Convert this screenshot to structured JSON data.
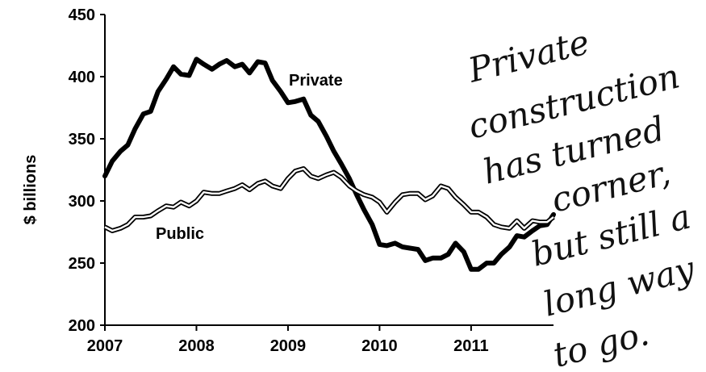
{
  "chart_data": {
    "type": "line",
    "title": "",
    "xlabel": "",
    "ylabel": "$ billions",
    "xlim": [
      2007.0,
      2011.9
    ],
    "ylim": [
      200,
      450
    ],
    "x_ticks": [
      "2007",
      "2008",
      "2009",
      "2010",
      "2011"
    ],
    "y_ticks": [
      "200",
      "250",
      "300",
      "350",
      "400",
      "450"
    ],
    "grid": false,
    "legend": "none",
    "series": [
      {
        "name": "Private",
        "color": "#000000",
        "style": "thick",
        "points": [
          [
            2007.0,
            320
          ],
          [
            2007.08,
            332
          ],
          [
            2007.17,
            340
          ],
          [
            2007.25,
            345
          ],
          [
            2007.33,
            358
          ],
          [
            2007.42,
            370
          ],
          [
            2007.5,
            372
          ],
          [
            2007.58,
            388
          ],
          [
            2007.67,
            398
          ],
          [
            2007.75,
            408
          ],
          [
            2007.83,
            402
          ],
          [
            2007.92,
            401
          ],
          [
            2008.0,
            414
          ],
          [
            2008.08,
            410
          ],
          [
            2008.17,
            406
          ],
          [
            2008.25,
            410
          ],
          [
            2008.33,
            413
          ],
          [
            2008.42,
            408
          ],
          [
            2008.5,
            410
          ],
          [
            2008.58,
            403
          ],
          [
            2008.67,
            412
          ],
          [
            2008.75,
            411
          ],
          [
            2008.83,
            397
          ],
          [
            2008.92,
            388
          ],
          [
            2009.0,
            379
          ],
          [
            2009.08,
            380
          ],
          [
            2009.17,
            382
          ],
          [
            2009.25,
            369
          ],
          [
            2009.33,
            364
          ],
          [
            2009.42,
            352
          ],
          [
            2009.5,
            340
          ],
          [
            2009.58,
            330
          ],
          [
            2009.67,
            318
          ],
          [
            2009.75,
            305
          ],
          [
            2009.83,
            293
          ],
          [
            2009.92,
            281
          ],
          [
            2010.0,
            265
          ],
          [
            2010.08,
            264
          ],
          [
            2010.17,
            266
          ],
          [
            2010.25,
            263
          ],
          [
            2010.33,
            262
          ],
          [
            2010.42,
            261
          ],
          [
            2010.5,
            252
          ],
          [
            2010.58,
            254
          ],
          [
            2010.67,
            254
          ],
          [
            2010.75,
            257
          ],
          [
            2010.83,
            266
          ],
          [
            2010.92,
            259
          ],
          [
            2011.0,
            245
          ],
          [
            2011.08,
            245
          ],
          [
            2011.17,
            250
          ],
          [
            2011.25,
            250
          ],
          [
            2011.33,
            257
          ],
          [
            2011.42,
            263
          ],
          [
            2011.5,
            272
          ],
          [
            2011.58,
            271
          ],
          [
            2011.67,
            276
          ],
          [
            2011.75,
            280
          ],
          [
            2011.83,
            281
          ],
          [
            2011.9,
            289
          ]
        ]
      },
      {
        "name": "Public",
        "color": "#000000",
        "style": "double",
        "points": [
          [
            2007.0,
            279
          ],
          [
            2007.08,
            276
          ],
          [
            2007.17,
            278
          ],
          [
            2007.25,
            281
          ],
          [
            2007.33,
            287
          ],
          [
            2007.42,
            287
          ],
          [
            2007.5,
            288
          ],
          [
            2007.58,
            292
          ],
          [
            2007.67,
            296
          ],
          [
            2007.75,
            295
          ],
          [
            2007.83,
            299
          ],
          [
            2007.92,
            296
          ],
          [
            2008.0,
            300
          ],
          [
            2008.08,
            307
          ],
          [
            2008.17,
            306
          ],
          [
            2008.25,
            306
          ],
          [
            2008.33,
            308
          ],
          [
            2008.42,
            310
          ],
          [
            2008.5,
            313
          ],
          [
            2008.58,
            309
          ],
          [
            2008.67,
            314
          ],
          [
            2008.75,
            316
          ],
          [
            2008.83,
            312
          ],
          [
            2008.92,
            310
          ],
          [
            2009.0,
            318
          ],
          [
            2009.08,
            324
          ],
          [
            2009.17,
            326
          ],
          [
            2009.25,
            320
          ],
          [
            2009.33,
            318
          ],
          [
            2009.42,
            321
          ],
          [
            2009.5,
            323
          ],
          [
            2009.58,
            319
          ],
          [
            2009.67,
            312
          ],
          [
            2009.75,
            308
          ],
          [
            2009.83,
            305
          ],
          [
            2009.92,
            303
          ],
          [
            2010.0,
            299
          ],
          [
            2010.08,
            291
          ],
          [
            2010.17,
            299
          ],
          [
            2010.25,
            305
          ],
          [
            2010.33,
            306
          ],
          [
            2010.42,
            306
          ],
          [
            2010.5,
            301
          ],
          [
            2010.58,
            304
          ],
          [
            2010.67,
            312
          ],
          [
            2010.75,
            310
          ],
          [
            2010.83,
            303
          ],
          [
            2010.92,
            297
          ],
          [
            2011.0,
            291
          ],
          [
            2011.08,
            291
          ],
          [
            2011.17,
            287
          ],
          [
            2011.25,
            281
          ],
          [
            2011.33,
            279
          ],
          [
            2011.42,
            278
          ],
          [
            2011.5,
            284
          ],
          [
            2011.58,
            278
          ],
          [
            2011.67,
            284
          ],
          [
            2011.75,
            283
          ],
          [
            2011.83,
            283
          ],
          [
            2011.9,
            287
          ]
        ]
      }
    ],
    "series_labels": [
      {
        "text": "Private",
        "series": "Private"
      },
      {
        "text": "Public",
        "series": "Public"
      }
    ],
    "annotation": {
      "kind": "handwritten",
      "lines": [
        "Private",
        "construction",
        "has turned",
        "corner,",
        "but still a",
        "long way",
        "to go."
      ]
    }
  }
}
